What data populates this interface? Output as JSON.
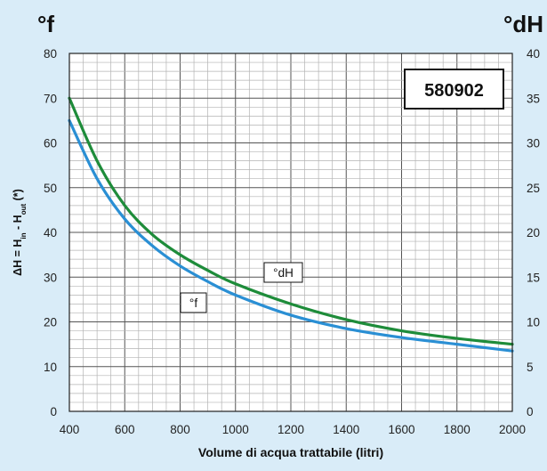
{
  "chart_data": {
    "type": "line",
    "title": "",
    "left_axis_unit": "°f",
    "right_axis_unit": "°dH",
    "xlabel": "Volume di acqua trattabile (litri)",
    "ylabel_parts": {
      "base": "ΔH = H",
      "sub_in": "in",
      "mid": " - H",
      "sub_out": "out",
      "tail": " (*)"
    },
    "model_label": "580902",
    "xlim": [
      400,
      2000
    ],
    "ylim_left": [
      0,
      80
    ],
    "ylim_right": [
      0,
      40
    ],
    "x_ticks": [
      400,
      600,
      800,
      1000,
      1200,
      1400,
      1600,
      1800,
      2000
    ],
    "y_ticks_left": [
      0,
      10,
      20,
      30,
      40,
      50,
      60,
      70,
      80
    ],
    "y_ticks_right": [
      0,
      5,
      10,
      15,
      20,
      25,
      30,
      35,
      40
    ],
    "grid": true,
    "series": [
      {
        "name": "°f",
        "color": "#2a8fd4",
        "axis": "left",
        "x": [
          400,
          500,
          600,
          700,
          800,
          900,
          1000,
          1200,
          1400,
          1600,
          1800,
          2000
        ],
        "y": [
          65,
          52,
          43,
          37,
          32.5,
          29,
          26,
          21.5,
          18.5,
          16.5,
          15,
          13.5
        ]
      },
      {
        "name": "°dH",
        "color": "#1e8c3a",
        "axis": "left",
        "x": [
          400,
          500,
          600,
          700,
          800,
          900,
          1000,
          1200,
          1400,
          1600,
          1800,
          2000
        ],
        "y": [
          70,
          56,
          46,
          39.5,
          35,
          31.5,
          28.5,
          24,
          20.5,
          18,
          16.3,
          15
        ]
      }
    ]
  }
}
